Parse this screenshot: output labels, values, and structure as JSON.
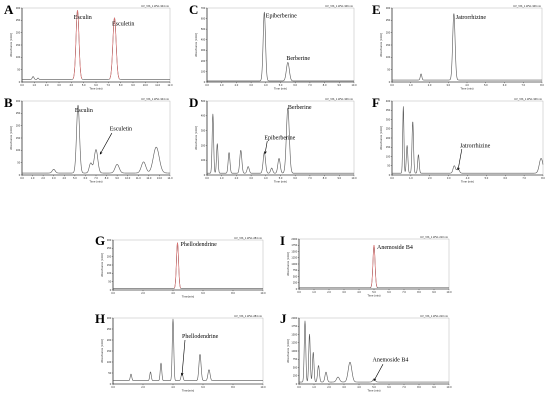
{
  "chart_data": [
    {
      "panel": "A",
      "type": "line",
      "header": "UV_VIS_1 WVL:344 nm",
      "xlabel": "Time (min)",
      "ylabel": "Absorbance [mAU]",
      "xlim": [
        0,
        12
      ],
      "ylim": [
        0,
        300
      ],
      "x_ticks": [
        "0.0",
        "1.0",
        "2.0",
        "3.0",
        "4.0",
        "5.0",
        "6.0",
        "7.0",
        "8.0",
        "9.0",
        "10.0",
        "11.0",
        "12.0"
      ],
      "y_ticks": [
        "0",
        "50",
        "100",
        "150",
        "200",
        "250",
        "300"
      ],
      "baseline": 10,
      "noise": [],
      "peaks": [
        {
          "label": "Esculin",
          "rt": 4.5,
          "height": 280,
          "width": 0.1,
          "color": "#e07070",
          "label_pos": [
            4.2,
            255
          ],
          "arrow": null
        },
        {
          "label": "Esculetin",
          "rt": 7.5,
          "height": 250,
          "width": 0.11,
          "color": "#e07070",
          "label_pos": [
            7.3,
            230
          ],
          "arrow": null
        },
        {
          "label": "",
          "rt": 0.9,
          "height": 12,
          "width": 0.06,
          "color": "#555555"
        },
        {
          "label": "",
          "rt": 1.3,
          "height": 6,
          "width": 0.05,
          "color": "#555555"
        }
      ]
    },
    {
      "panel": "B",
      "type": "line",
      "header": "UV_VIS_1 WVL:344 nm",
      "xlabel": "Time (min)",
      "ylabel": "Absorbance [mAU]",
      "xlim": [
        0,
        14
      ],
      "ylim": [
        0,
        300
      ],
      "x_ticks": [
        "0.0",
        "1.0",
        "2.0",
        "3.0",
        "4.0",
        "5.0",
        "6.0",
        "7.0",
        "8.0",
        "9.0",
        "10.0",
        "11.0",
        "12.0",
        "13.0",
        "14.0"
      ],
      "y_ticks": [
        "0",
        "50",
        "100",
        "150",
        "200",
        "250",
        "300"
      ],
      "baseline": 8,
      "noise": [],
      "peaks": [
        {
          "label": "Esculin",
          "rt": 5.3,
          "height": 275,
          "width": 0.1,
          "color": "#555555",
          "label_pos": [
            5.0,
            255
          ],
          "arrow": null
        },
        {
          "label": "Esculetin",
          "rt": 7.0,
          "height": 95,
          "width": 0.12,
          "color": "#555555",
          "label_pos": [
            8.3,
            180
          ],
          "arrow": {
            "from": [
              8.5,
              170
            ],
            "to": [
              7.4,
              85
            ]
          }
        },
        {
          "label": "",
          "rt": 6.5,
          "height": 40,
          "width": 0.1,
          "color": "#555555"
        },
        {
          "label": "",
          "rt": 9.0,
          "height": 35,
          "width": 0.14,
          "color": "#555555"
        },
        {
          "label": "",
          "rt": 11.5,
          "height": 45,
          "width": 0.15,
          "color": "#555555"
        },
        {
          "label": "",
          "rt": 12.7,
          "height": 105,
          "width": 0.2,
          "color": "#555555"
        },
        {
          "label": "",
          "rt": 3.0,
          "height": 15,
          "width": 0.1,
          "color": "#555555"
        }
      ]
    },
    {
      "panel": "C",
      "type": "line",
      "header": "UV_VIS_1 WVL:346 nm",
      "xlabel": "Time (min)",
      "ylabel": "Absorbance [mAU]",
      "xlim": [
        0,
        10
      ],
      "ylim": [
        0,
        700
      ],
      "x_ticks": [
        "0.0",
        "1.0",
        "2.0",
        "3.0",
        "4.0",
        "5.0",
        "6.0",
        "7.0",
        "8.0",
        "9.0",
        "10.0"
      ],
      "y_ticks": [
        "0",
        "100",
        "200",
        "300",
        "400",
        "500",
        "600",
        "700"
      ],
      "baseline": 10,
      "noise": [],
      "peaks": [
        {
          "label": "Epiberberine",
          "rt": 3.9,
          "height": 650,
          "width": 0.08,
          "color": "#555555",
          "label_pos": [
            4.0,
            610
          ],
          "arrow": null
        },
        {
          "label": "Berberine",
          "rt": 5.5,
          "height": 175,
          "width": 0.1,
          "color": "#555555",
          "label_pos": [
            5.4,
            210
          ],
          "arrow": null
        }
      ]
    },
    {
      "panel": "D",
      "type": "line",
      "header": "UV_VIS_1 WVL:346 nm",
      "xlabel": "Time (min)",
      "ylabel": "Absorbance [mAU]",
      "xlim": [
        0,
        10
      ],
      "ylim": [
        0,
        500
      ],
      "x_ticks": [
        "0.0",
        "1.0",
        "2.0",
        "3.0",
        "4.0",
        "5.0",
        "6.0",
        "7.0",
        "8.0",
        "9.0",
        "10.0"
      ],
      "y_ticks": [
        "0",
        "100",
        "200",
        "300",
        "400",
        "500"
      ],
      "baseline": 12,
      "noise": [],
      "peaks": [
        {
          "label": "Epiberberine",
          "rt": 3.9,
          "height": 140,
          "width": 0.08,
          "color": "#555555",
          "label_pos": [
            3.9,
            240
          ],
          "arrow": {
            "from": [
              4.1,
              230
            ],
            "to": [
              3.95,
              145
            ]
          }
        },
        {
          "label": "Berberine",
          "rt": 5.5,
          "height": 440,
          "width": 0.1,
          "color": "#555555",
          "label_pos": [
            5.5,
            445
          ],
          "arrow": null
        },
        {
          "label": "",
          "rt": 0.4,
          "height": 400,
          "width": 0.05,
          "color": "#555555"
        },
        {
          "label": "",
          "rt": 0.7,
          "height": 200,
          "width": 0.05,
          "color": "#555555"
        },
        {
          "label": "",
          "rt": 1.5,
          "height": 140,
          "width": 0.06,
          "color": "#555555"
        },
        {
          "label": "",
          "rt": 2.3,
          "height": 155,
          "width": 0.07,
          "color": "#555555"
        },
        {
          "label": "",
          "rt": 2.8,
          "height": 45,
          "width": 0.07,
          "color": "#555555"
        },
        {
          "label": "",
          "rt": 4.4,
          "height": 35,
          "width": 0.07,
          "color": "#555555"
        },
        {
          "label": "",
          "rt": 4.9,
          "height": 100,
          "width": 0.08,
          "color": "#555555"
        }
      ]
    },
    {
      "panel": "E",
      "type": "line",
      "header": "UV_VIS_1 WVL:346 nm",
      "xlabel": "Time (min)",
      "ylabel": "Absorbance [mAU]",
      "xlim": [
        0,
        8
      ],
      "ylim": [
        0,
        300
      ],
      "x_ticks": [
        "0.0",
        "1.0",
        "2.0",
        "3.0",
        "4.0",
        "5.0",
        "6.0",
        "7.0",
        "8.0"
      ],
      "y_ticks": [
        "0",
        "50",
        "100",
        "150",
        "200",
        "250",
        "300"
      ],
      "baseline": 8,
      "noise": [],
      "peaks": [
        {
          "label": "Jatrorrhizine",
          "rt": 3.3,
          "height": 270,
          "width": 0.08,
          "color": "#555555",
          "label_pos": [
            3.4,
            255
          ],
          "arrow": null
        },
        {
          "label": "",
          "rt": 1.55,
          "height": 25,
          "width": 0.05,
          "color": "#555555"
        }
      ]
    },
    {
      "panel": "F",
      "type": "line",
      "header": "UV_VIS_1 WVL:346 nm",
      "xlabel": "Time (min)",
      "ylabel": "Absorbance [mAU]",
      "xlim": [
        0,
        8
      ],
      "ylim": [
        0,
        400
      ],
      "x_ticks": [
        "0.0",
        "1.0",
        "2.0",
        "3.0",
        "4.0",
        "5.0",
        "6.0",
        "7.0",
        "8.0"
      ],
      "y_ticks": [
        "0",
        "50",
        "100",
        "150",
        "200",
        "250",
        "300",
        "350",
        "400"
      ],
      "baseline": 10,
      "noise": [],
      "peaks": [
        {
          "label": "Jatrorrhizine",
          "rt": 3.5,
          "height": 25,
          "width": 0.08,
          "color": "#555555",
          "label_pos": [
            3.6,
            150
          ],
          "arrow": {
            "from": [
              3.7,
              140
            ],
            "to": [
              3.5,
              28
            ]
          }
        },
        {
          "label": "",
          "rt": 0.6,
          "height": 360,
          "width": 0.04,
          "color": "#555555"
        },
        {
          "label": "",
          "rt": 0.8,
          "height": 150,
          "width": 0.05,
          "color": "#555555"
        },
        {
          "label": "",
          "rt": 1.1,
          "height": 280,
          "width": 0.05,
          "color": "#555555"
        },
        {
          "label": "",
          "rt": 1.4,
          "height": 100,
          "width": 0.05,
          "color": "#555555"
        },
        {
          "label": "",
          "rt": 3.3,
          "height": 40,
          "width": 0.08,
          "color": "#555555"
        },
        {
          "label": "",
          "rt": 7.9,
          "height": 80,
          "width": 0.12,
          "color": "#555555"
        }
      ]
    },
    {
      "panel": "G",
      "type": "line",
      "header": "UV_VIS_1 WVL:284 nm",
      "xlabel": "Time(min)",
      "ylabel": "Absorbance [mAU]",
      "xlim": [
        0,
        10
      ],
      "ylim": [
        0,
        300
      ],
      "x_ticks": [
        "0.0",
        "2.0",
        "4.0",
        "6.0",
        "8.0",
        "10.0"
      ],
      "y_ticks": [
        "0",
        "50",
        "100",
        "150",
        "200",
        "250",
        "300"
      ],
      "baseline": 8,
      "noise": [],
      "peaks": [
        {
          "label": "Phellodendrine",
          "rt": 4.3,
          "height": 275,
          "width": 0.07,
          "color": "#e07070",
          "label_pos": [
            4.5,
            265
          ],
          "arrow": null
        }
      ]
    },
    {
      "panel": "H",
      "type": "line",
      "header": "UV_VIS_1 WVL:284 nm",
      "xlabel": "Time(min)",
      "ylabel": "Absorbance [mAU]",
      "xlim": [
        0,
        10
      ],
      "ylim": [
        0,
        300
      ],
      "x_ticks": [
        "0.0",
        "2.0",
        "4.0",
        "6.0",
        "8.0",
        "10.0"
      ],
      "y_ticks": [
        "0",
        "50",
        "100",
        "150",
        "200",
        "250",
        "300"
      ],
      "baseline": 15,
      "noise": [],
      "peaks": [
        {
          "label": "Phellodendrine",
          "rt": 4.6,
          "height": 35,
          "width": 0.06,
          "color": "#555555",
          "label_pos": [
            4.6,
            210
          ],
          "arrow": {
            "from": [
              4.8,
              200
            ],
            "to": [
              4.6,
              40
            ]
          }
        },
        {
          "label": "",
          "rt": 4.0,
          "height": 280,
          "width": 0.05,
          "color": "#555555"
        },
        {
          "label": "",
          "rt": 3.2,
          "height": 80,
          "width": 0.05,
          "color": "#555555"
        },
        {
          "label": "",
          "rt": 2.5,
          "height": 40,
          "width": 0.05,
          "color": "#555555"
        },
        {
          "label": "",
          "rt": 5.8,
          "height": 120,
          "width": 0.07,
          "color": "#555555"
        },
        {
          "label": "",
          "rt": 6.4,
          "height": 50,
          "width": 0.07,
          "color": "#555555"
        },
        {
          "label": "",
          "rt": 1.2,
          "height": 30,
          "width": 0.05,
          "color": "#555555"
        }
      ]
    },
    {
      "panel": "I",
      "type": "line",
      "header": "UV_VIS_1 WVL:210 nm",
      "xlabel": "Time (min)",
      "ylabel": "Absorbance [mAU]",
      "xlim": [
        0,
        10
      ],
      "ylim": [
        0,
        2000
      ],
      "x_ticks": [
        "0.0",
        "1.0",
        "2.0",
        "3.0",
        "4.0",
        "5.0",
        "6.0",
        "7.0",
        "8.0",
        "9.0",
        "10.0"
      ],
      "y_ticks": [
        "0",
        "250",
        "500",
        "750",
        "1000",
        "1250",
        "1500",
        "1750",
        "2000"
      ],
      "baseline": 50,
      "noise": [],
      "peaks": [
        {
          "label": "Anemoside B4",
          "rt": 5.0,
          "height": 1700,
          "width": 0.07,
          "color": "#e07070",
          "label_pos": [
            5.2,
            1600
          ],
          "arrow": null
        }
      ]
    },
    {
      "panel": "J",
      "type": "line",
      "header": "UV_VIS_1 WVL:210 nm",
      "xlabel": "Time (min)",
      "ylabel": "Absorbance [mAU]",
      "xlim": [
        0,
        10
      ],
      "ylim": [
        0,
        2000
      ],
      "x_ticks": [
        "0.0",
        "1.0",
        "2.0",
        "3.0",
        "4.0",
        "5.0",
        "6.0",
        "7.0",
        "8.0",
        "9.0",
        "10.0"
      ],
      "y_ticks": [
        "0",
        "250",
        "500",
        "750",
        "1000",
        "1250",
        "1500",
        "1750",
        "2000"
      ],
      "baseline": 60,
      "noise": [],
      "peaks": [
        {
          "label": "Anemoside B4",
          "rt": 5.0,
          "height": 90,
          "width": 0.08,
          "color": "#555555",
          "label_pos": [
            4.9,
            680
          ],
          "arrow": {
            "from": [
              5.6,
              600
            ],
            "to": [
              5.0,
              100
            ]
          }
        },
        {
          "label": "",
          "rt": 0.4,
          "height": 1850,
          "width": 0.05,
          "color": "#555555"
        },
        {
          "label": "",
          "rt": 0.7,
          "height": 1450,
          "width": 0.05,
          "color": "#555555"
        },
        {
          "label": "",
          "rt": 0.95,
          "height": 900,
          "width": 0.05,
          "color": "#555555"
        },
        {
          "label": "",
          "rt": 1.3,
          "height": 500,
          "width": 0.06,
          "color": "#555555"
        },
        {
          "label": "",
          "rt": 1.8,
          "height": 300,
          "width": 0.07,
          "color": "#555555"
        },
        {
          "label": "",
          "rt": 3.4,
          "height": 600,
          "width": 0.12,
          "color": "#555555"
        },
        {
          "label": "",
          "rt": 2.6,
          "height": 150,
          "width": 0.1,
          "color": "#555555"
        }
      ]
    }
  ]
}
